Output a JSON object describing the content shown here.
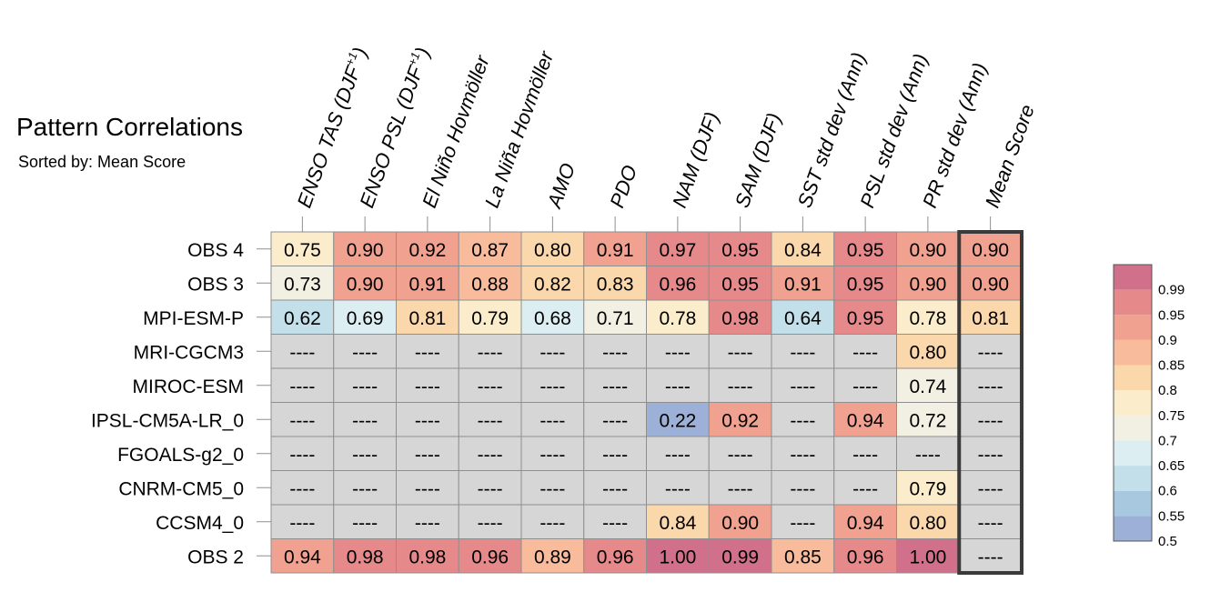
{
  "title": "Pattern Correlations",
  "subtitle": "Sorted by: Mean Score",
  "chart_data": {
    "type": "heatmap",
    "title": "Pattern Correlations",
    "subtitle": "Sorted by: Mean Score",
    "columns": [
      "ENSO TAS (DJF+1)",
      "ENSO PSL (DJF+1)",
      "El Niño Hovmöller",
      "La Niña Hovmöller",
      "AMO",
      "PDO",
      "NAM (DJF)",
      "SAM (DJF)",
      "SST std dev (Ann)",
      "PSL std dev (Ann)",
      "PR std dev (Ann)",
      "Mean Score"
    ],
    "column_labels": [
      {
        "text": "ENSO TAS (DJF",
        "sup": "+1",
        "close": ")"
      },
      {
        "text": "ENSO PSL (DJF",
        "sup": "+1",
        "close": ")"
      },
      {
        "text": "El Niño Hovmöller",
        "sup": "",
        "close": ""
      },
      {
        "text": "La Niña Hovmöller",
        "sup": "",
        "close": ""
      },
      {
        "text": "AMO",
        "sup": "",
        "close": ""
      },
      {
        "text": "PDO",
        "sup": "",
        "close": ""
      },
      {
        "text": "NAM (DJF)",
        "sup": "",
        "close": ""
      },
      {
        "text": "SAM (DJF)",
        "sup": "",
        "close": ""
      },
      {
        "text": "SST std dev (Ann)",
        "sup": "",
        "close": ""
      },
      {
        "text": "PSL std dev (Ann)",
        "sup": "",
        "close": ""
      },
      {
        "text": "PR std dev (Ann)",
        "sup": "",
        "close": ""
      },
      {
        "text": "Mean Score",
        "sup": "",
        "close": ""
      }
    ],
    "rows": [
      "OBS 4",
      "OBS 3",
      "MPI-ESM-P",
      "MRI-CGCM3",
      "MIROC-ESM",
      "IPSL-CM5A-LR_0",
      "FGOALS-g2_0",
      "CNRM-CM5_0",
      "CCSM4_0",
      "OBS 2"
    ],
    "values": [
      [
        0.75,
        0.9,
        0.92,
        0.87,
        0.8,
        0.91,
        0.97,
        0.95,
        0.84,
        0.95,
        0.9,
        0.9
      ],
      [
        0.73,
        0.9,
        0.91,
        0.88,
        0.82,
        0.83,
        0.96,
        0.95,
        0.91,
        0.95,
        0.9,
        0.9
      ],
      [
        0.62,
        0.69,
        0.81,
        0.79,
        0.68,
        0.71,
        0.78,
        0.98,
        0.64,
        0.95,
        0.78,
        0.81
      ],
      [
        null,
        null,
        null,
        null,
        null,
        null,
        null,
        null,
        null,
        null,
        0.8,
        null
      ],
      [
        null,
        null,
        null,
        null,
        null,
        null,
        null,
        null,
        null,
        null,
        0.74,
        null
      ],
      [
        null,
        null,
        null,
        null,
        null,
        null,
        0.22,
        0.92,
        null,
        0.94,
        0.72,
        null
      ],
      [
        null,
        null,
        null,
        null,
        null,
        null,
        null,
        null,
        null,
        null,
        null,
        null
      ],
      [
        null,
        null,
        null,
        null,
        null,
        null,
        null,
        null,
        null,
        null,
        0.79,
        null
      ],
      [
        null,
        null,
        null,
        null,
        null,
        null,
        0.84,
        0.9,
        null,
        0.94,
        0.8,
        null
      ],
      [
        0.94,
        0.98,
        0.98,
        0.96,
        0.89,
        0.96,
        1.0,
        0.99,
        0.85,
        0.96,
        1.0,
        null
      ]
    ],
    "missing_text": "----",
    "missing_color": "#d6d6d6",
    "highlighted_column": "Mean Score",
    "colorbar": {
      "labels": [
        "0.99",
        "0.95",
        "0.9",
        "0.85",
        "0.8",
        "0.75",
        "0.7",
        "0.65",
        "0.6",
        "0.55",
        "0.5"
      ],
      "colors": [
        "#d0708a",
        "#e6898a",
        "#f1a190",
        "#f8bc9c",
        "#fbd7ac",
        "#fbeccb",
        "#f1f0e2",
        "#ddeef2",
        "#c3e0ea",
        "#a8c8e0",
        "#9db1d8"
      ]
    }
  }
}
